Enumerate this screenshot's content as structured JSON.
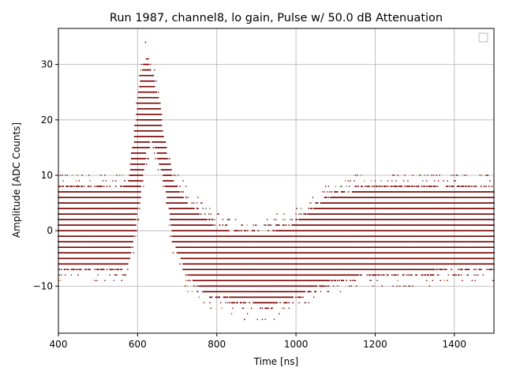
{
  "chart_data": {
    "type": "scatter",
    "title": "Run 1987, channel8, lo gain, Pulse w/ 50.0 dB Attenuation",
    "xlabel": "Time [ns]",
    "ylabel": "Amplitude [ADC Counts]",
    "xlim": [
      400,
      1500
    ],
    "ylim": [
      -18.5,
      36.5
    ],
    "xticks": [
      400,
      600,
      800,
      1000,
      1200,
      1400
    ],
    "yticks": [
      -10,
      0,
      10,
      20,
      30
    ],
    "grid": true,
    "legend": {
      "placement": "top-right",
      "entries": []
    },
    "marker_color": "#7a0000",
    "outlier_colors": [
      "#1f3fbf",
      "#c07a00",
      "#2a8a2a"
    ],
    "baseline": {
      "min": -7,
      "max": 8,
      "outlier_min": -10,
      "outlier_max": 10
    },
    "pulse_envelope": [
      {
        "t": 400,
        "lo": -7,
        "hi": 8
      },
      {
        "t": 560,
        "lo": -7,
        "hi": 8
      },
      {
        "t": 575,
        "lo": -6,
        "hi": 9
      },
      {
        "t": 590,
        "lo": -2,
        "hi": 16
      },
      {
        "t": 605,
        "lo": 5,
        "hi": 27
      },
      {
        "t": 620,
        "lo": 13,
        "hi": 31
      },
      {
        "t": 635,
        "lo": 16,
        "hi": 29
      },
      {
        "t": 650,
        "lo": 14,
        "hi": 25
      },
      {
        "t": 670,
        "lo": 7,
        "hi": 16
      },
      {
        "t": 690,
        "lo": -2,
        "hi": 9
      },
      {
        "t": 720,
        "lo": -8,
        "hi": 6
      },
      {
        "t": 760,
        "lo": -11,
        "hi": 3
      },
      {
        "t": 800,
        "lo": -12,
        "hi": 1
      },
      {
        "t": 860,
        "lo": -13,
        "hi": 0
      },
      {
        "t": 920,
        "lo": -14,
        "hi": 0
      },
      {
        "t": 980,
        "lo": -13,
        "hi": 1
      },
      {
        "t": 1040,
        "lo": -11,
        "hi": 4
      },
      {
        "t": 1100,
        "lo": -9,
        "hi": 7
      },
      {
        "t": 1200,
        "lo": -8,
        "hi": 8
      },
      {
        "t": 1500,
        "lo": -7,
        "hi": 8
      }
    ],
    "peak": {
      "t": 620,
      "value": 34
    },
    "minimum": {
      "t": 870,
      "value": -16
    }
  }
}
